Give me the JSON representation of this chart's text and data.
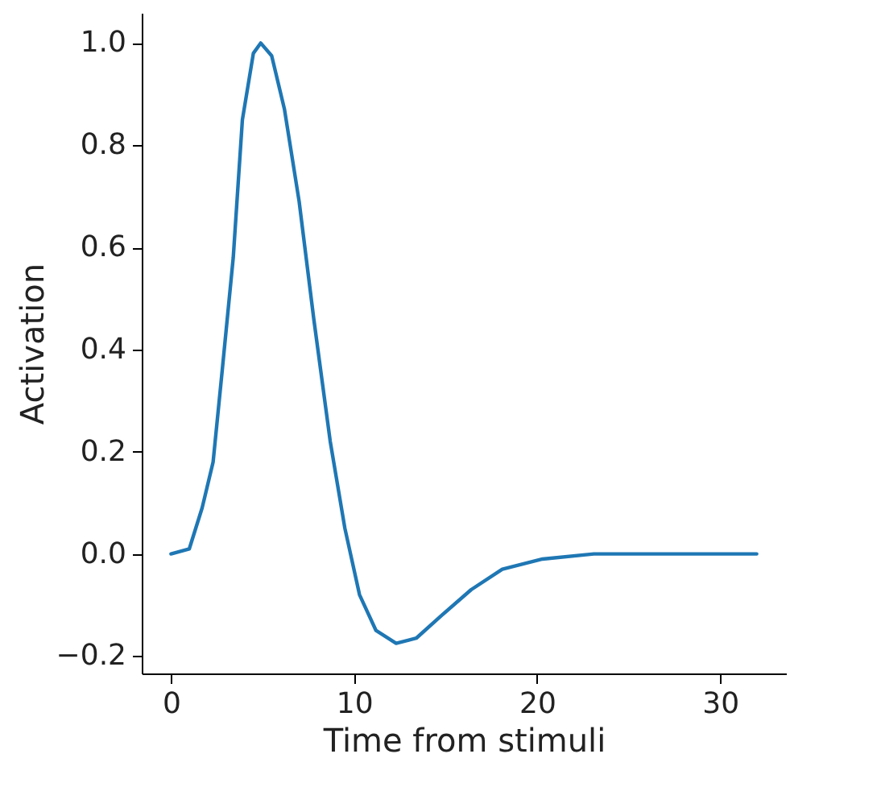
{
  "chart_data": {
    "type": "line",
    "xlabel": "Time from stimuli",
    "ylabel": "Activation",
    "series": [
      {
        "color": "#1f77b4",
        "x": [
          0,
          1,
          1.7,
          2.3,
          2.8,
          3.4,
          3.9,
          4.5,
          4.9,
          5.5,
          6.2,
          7.0,
          7.8,
          8.7,
          9.5,
          10.3,
          11.2,
          12.3,
          13.4,
          14.8,
          16.4,
          18.1,
          20.3,
          23.1,
          32
        ],
        "values": [
          0,
          0.01,
          0.09,
          0.18,
          0.36,
          0.58,
          0.85,
          0.98,
          1.0,
          0.975,
          0.87,
          0.69,
          0.46,
          0.22,
          0.05,
          -0.08,
          -0.15,
          -0.175,
          -0.165,
          -0.12,
          -0.07,
          -0.03,
          -0.01,
          0,
          0
        ]
      }
    ],
    "xlim": [
      -1.6,
      33.6
    ],
    "xticks": [
      0,
      10,
      20,
      30
    ],
    "ylim": [
      -0.234,
      1.059
    ],
    "yticks": [
      {
        "value": -0.2,
        "label": "−0.2"
      },
      {
        "value": 0,
        "label": "0.0"
      },
      0.2,
      0.4,
      0.6,
      0.8,
      {
        "value": 1,
        "label": "1.0"
      }
    ],
    "grid": false,
    "marker": "none",
    "line_style": "solid"
  }
}
